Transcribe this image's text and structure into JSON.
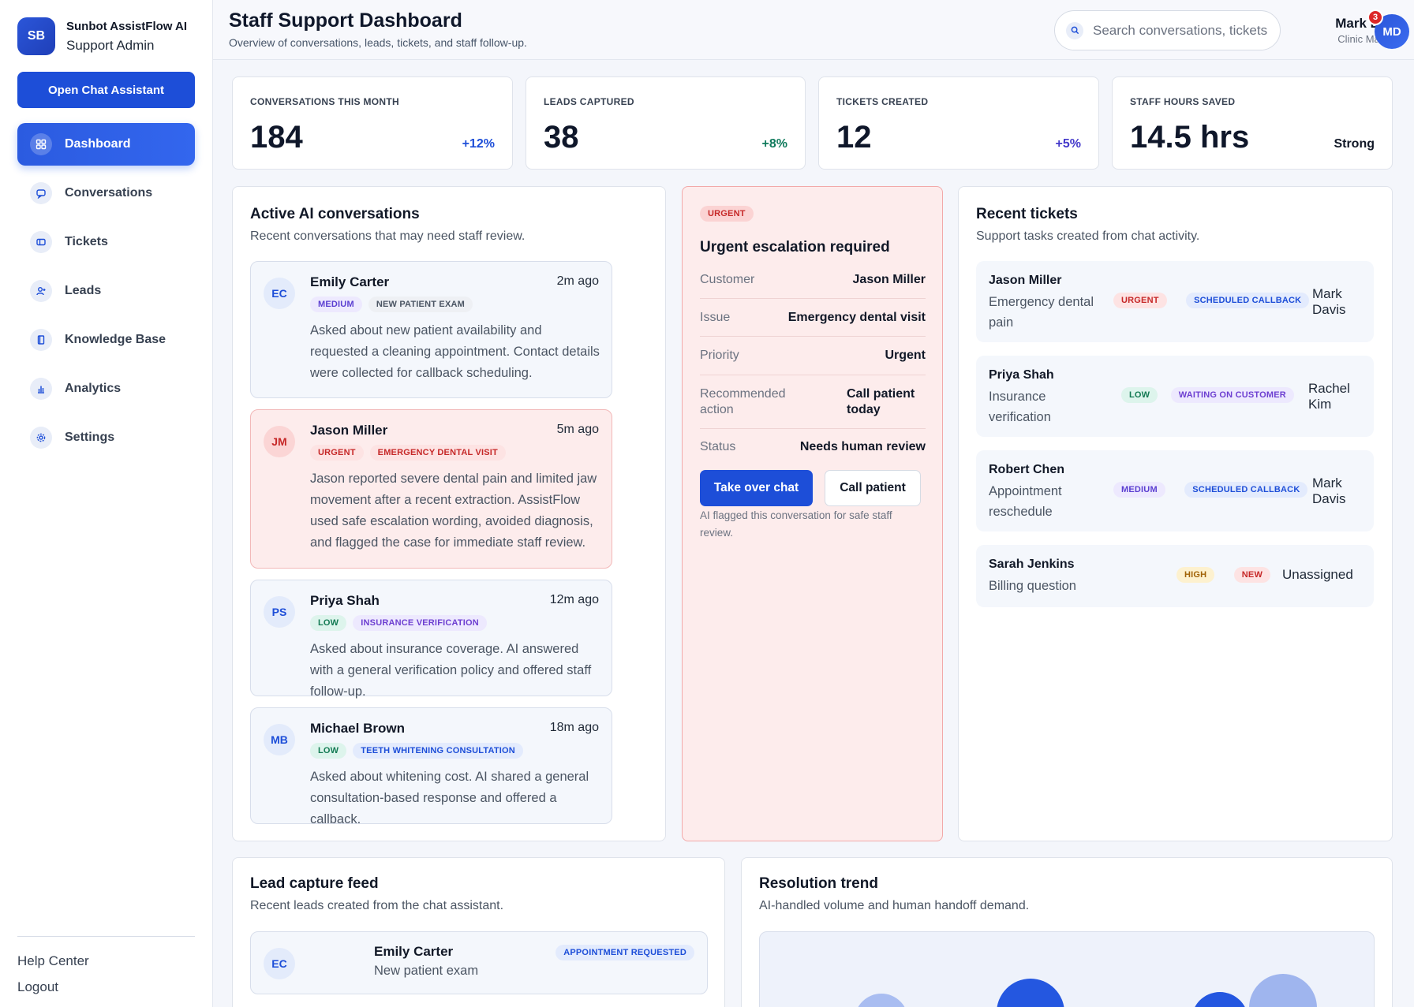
{
  "brand": {
    "initials": "SB",
    "name": "Sunbot AssistFlow AI",
    "subtitle": "Support Admin"
  },
  "sidebar": {
    "open_chat_label": "Open Chat Assistant",
    "items": [
      {
        "label": "Dashboard",
        "icon": "grid-icon",
        "active": true
      },
      {
        "label": "Conversations",
        "icon": "chat-icon"
      },
      {
        "label": "Tickets",
        "icon": "ticket-icon"
      },
      {
        "label": "Leads",
        "icon": "user-plus-icon"
      },
      {
        "label": "Knowledge Base",
        "icon": "book-icon"
      },
      {
        "label": "Analytics",
        "icon": "bar-chart-icon"
      },
      {
        "label": "Settings",
        "icon": "gear-icon"
      }
    ],
    "help_label": "Help Center",
    "logout_label": "Logout"
  },
  "header": {
    "title": "Staff Support Dashboard",
    "subtitle": "Overview of conversations, leads, tickets, and staff follow-up.",
    "search_placeholder": "Search conversations, tickets",
    "user_name": "Mark Davis",
    "user_role": "Clinic Manager",
    "user_initials": "MD",
    "notification_count": "3"
  },
  "stats": [
    {
      "label": "CONVERSATIONS THIS MONTH",
      "value": "184",
      "delta": "+12%",
      "delta_color": "#1d4ed8"
    },
    {
      "label": "LEADS CAPTURED",
      "value": "38",
      "delta": "+8%",
      "delta_color": "#0f7a5c"
    },
    {
      "label": "TICKETS CREATED",
      "value": "12",
      "delta": "+5%",
      "delta_color": "#4338ca"
    },
    {
      "label": "STAFF HOURS SAVED",
      "value": "14.5 hrs",
      "delta": "Strong",
      "delta_color": "#111827"
    }
  ],
  "conversations": {
    "title": "Active AI conversations",
    "subtitle": "Recent conversations that may need staff review.",
    "items": [
      {
        "initials": "EC",
        "name": "Emily Carter",
        "time": "2m ago",
        "priority": "MEDIUM",
        "topic": "NEW PATIENT EXAM",
        "text": "Asked about new patient availability and requested a cleaning appointment. Contact details were collected for callback scheduling."
      },
      {
        "initials": "JM",
        "name": "Jason Miller",
        "time": "5m ago",
        "priority": "URGENT",
        "topic": "EMERGENCY DENTAL VISIT",
        "text": "Jason reported severe dental pain and limited jaw movement after a recent extraction. AssistFlow used safe escalation wording, avoided diagnosis, and flagged the case for immediate staff review."
      },
      {
        "initials": "PS",
        "name": "Priya Shah",
        "time": "12m ago",
        "priority": "LOW",
        "topic": "INSURANCE VERIFICATION",
        "text": "Asked about insurance coverage. AI answered with a general verification policy and offered staff follow-up."
      },
      {
        "initials": "MB",
        "name": "Michael Brown",
        "time": "18m ago",
        "priority": "LOW",
        "topic": "TEETH WHITENING CONSULTATION",
        "text": "Asked about whitening cost. AI shared a general consultation-based response and offered a callback."
      }
    ]
  },
  "escalation": {
    "badge": "URGENT",
    "title": "Urgent escalation required",
    "rows": [
      {
        "key": "Customer",
        "value": "Jason Miller"
      },
      {
        "key": "Issue",
        "value": "Emergency dental visit"
      },
      {
        "key": "Priority",
        "value": "Urgent"
      },
      {
        "key": "Recommended action",
        "value": "Call patient today"
      },
      {
        "key": "Status",
        "value": "Needs human review"
      }
    ],
    "take_over_label": "Take over chat",
    "call_label": "Call patient",
    "note": "AI flagged this conversation for safe staff review."
  },
  "tickets": {
    "title": "Recent tickets",
    "subtitle": "Support tasks created from chat activity.",
    "items": [
      {
        "name": "Jason Miller",
        "desc": "Emergency dental pain",
        "priority": "URGENT",
        "status": "SCHEDULED CALLBACK",
        "owner": "Mark Davis"
      },
      {
        "name": "Priya Shah",
        "desc": "Insurance verification",
        "priority": "LOW",
        "status": "WAITING ON CUSTOMER",
        "owner": "Rachel Kim"
      },
      {
        "name": "Robert Chen",
        "desc": "Appointment reschedule",
        "priority": "MEDIUM",
        "status": "SCHEDULED CALLBACK",
        "owner": "Mark Davis"
      },
      {
        "name": "Sarah Jenkins",
        "desc": "Billing question",
        "priority": "HIGH",
        "status": "NEW",
        "owner": "Unassigned"
      }
    ]
  },
  "leads": {
    "title": "Lead capture feed",
    "subtitle": "Recent leads created from the chat assistant.",
    "items": [
      {
        "initials": "EC",
        "name": "Emily Carter",
        "desc": "New patient exam",
        "status": "APPOINTMENT REQUESTED"
      }
    ]
  },
  "trend": {
    "title": "Resolution trend",
    "subtitle": "AI-handled volume and human handoff demand."
  }
}
